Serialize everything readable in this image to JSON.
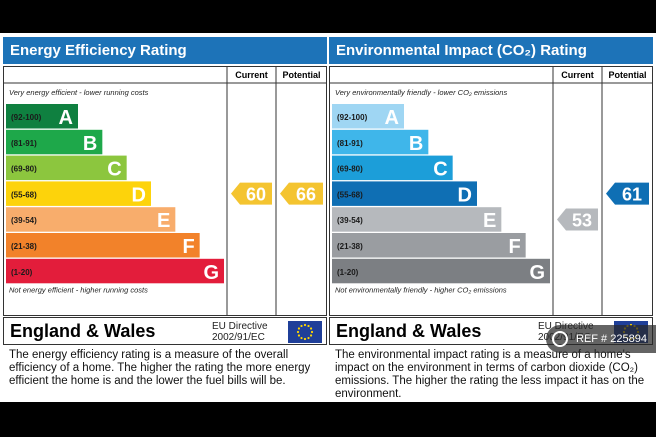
{
  "listing": {
    "watermark": "REF # 225894",
    "watermark_icon": "camera-icon"
  },
  "chart_data": [
    {
      "type": "energy-rating",
      "title": "Energy Efficiency Rating",
      "columns": [
        "Current",
        "Potential"
      ],
      "top_note": "Very energy efficient - lower running costs",
      "bottom_note": "Not energy efficient - higher running costs",
      "bands": [
        {
          "range": "(92-100)",
          "letter": "A",
          "color": "#0f8040"
        },
        {
          "range": "(81-91)",
          "letter": "B",
          "color": "#1ea84a"
        },
        {
          "range": "(69-80)",
          "letter": "C",
          "color": "#8cc63e"
        },
        {
          "range": "(55-68)",
          "letter": "D",
          "color": "#fdd30b"
        },
        {
          "range": "(39-54)",
          "letter": "E",
          "color": "#f8ad6c"
        },
        {
          "range": "(21-38)",
          "letter": "F",
          "color": "#f2822a"
        },
        {
          "range": "(1-20)",
          "letter": "G",
          "color": "#e31d3b"
        }
      ],
      "current": {
        "value": 60,
        "color": "#f4c430"
      },
      "potential": {
        "value": 66,
        "color": "#f4c430"
      },
      "region": "England & Wales",
      "directive": "EU Directive 2002/91/EC",
      "description": "The energy efficiency rating is a measure of the overall efficiency of a home. The higher the rating the more energy efficient the home is and the lower the fuel bills will be."
    },
    {
      "type": "energy-rating",
      "title": "Environmental Impact (CO₂) Rating",
      "columns": [
        "Current",
        "Potential"
      ],
      "top_note": "Very environmentally friendly - lower CO₂ emissions",
      "bottom_note": "Not environmentally friendly - higher CO₂ emissions",
      "bands": [
        {
          "range": "(92-100)",
          "letter": "A",
          "color": "#9fd6f3"
        },
        {
          "range": "(81-91)",
          "letter": "B",
          "color": "#3fb6ea"
        },
        {
          "range": "(69-80)",
          "letter": "C",
          "color": "#1c9ed9"
        },
        {
          "range": "(55-68)",
          "letter": "D",
          "color": "#0f6fb4"
        },
        {
          "range": "(39-54)",
          "letter": "E",
          "color": "#b6b9bd"
        },
        {
          "range": "(21-38)",
          "letter": "F",
          "color": "#9a9da1"
        },
        {
          "range": "(1-20)",
          "letter": "G",
          "color": "#7c7f83"
        }
      ],
      "current": {
        "value": 53,
        "color": "#b6b9bd"
      },
      "potential": {
        "value": 61,
        "color": "#0f6fb4"
      },
      "region": "England & Wales",
      "directive": "EU Directive 2002/91/EC",
      "description": "The environmental impact rating is a measure of a home's impact on the environment in terms of carbon dioxide (CO₂) emissions. The higher the rating the less impact it has on the environment."
    }
  ]
}
